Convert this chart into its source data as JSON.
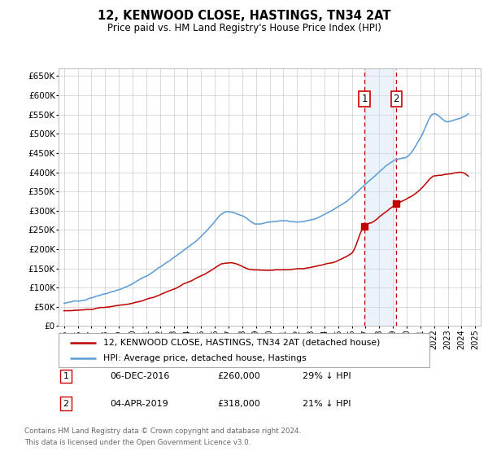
{
  "title": "12, KENWOOD CLOSE, HASTINGS, TN34 2AT",
  "subtitle": "Price paid vs. HM Land Registry's House Price Index (HPI)",
  "ylim": [
    0,
    670000
  ],
  "yticks": [
    0,
    50000,
    100000,
    150000,
    200000,
    250000,
    300000,
    350000,
    400000,
    450000,
    500000,
    550000,
    600000,
    650000
  ],
  "xlim_start": 1994.6,
  "xlim_end": 2025.4,
  "transaction1_date": 2016.92,
  "transaction1_price": 260000,
  "transaction1_label": "1",
  "transaction1_year_label": "06-DEC-2016",
  "transaction1_pct": "29% ↓ HPI",
  "transaction2_date": 2019.25,
  "transaction2_price": 318000,
  "transaction2_label": "2",
  "transaction2_year_label": "04-APR-2019",
  "transaction2_pct": "21% ↓ HPI",
  "legend_line1": "12, KENWOOD CLOSE, HASTINGS, TN34 2AT (detached house)",
  "legend_line2": "HPI: Average price, detached house, Hastings",
  "footer_line1": "Contains HM Land Registry data © Crown copyright and database right 2024.",
  "footer_line2": "This data is licensed under the Open Government Licence v3.0.",
  "line_color_hpi": "#5B9BD5",
  "line_color_property": "#C00000",
  "shaded_color": "#C8DCF0",
  "grid_color": "#CCCCCC",
  "background_color": "#FFFFFF"
}
